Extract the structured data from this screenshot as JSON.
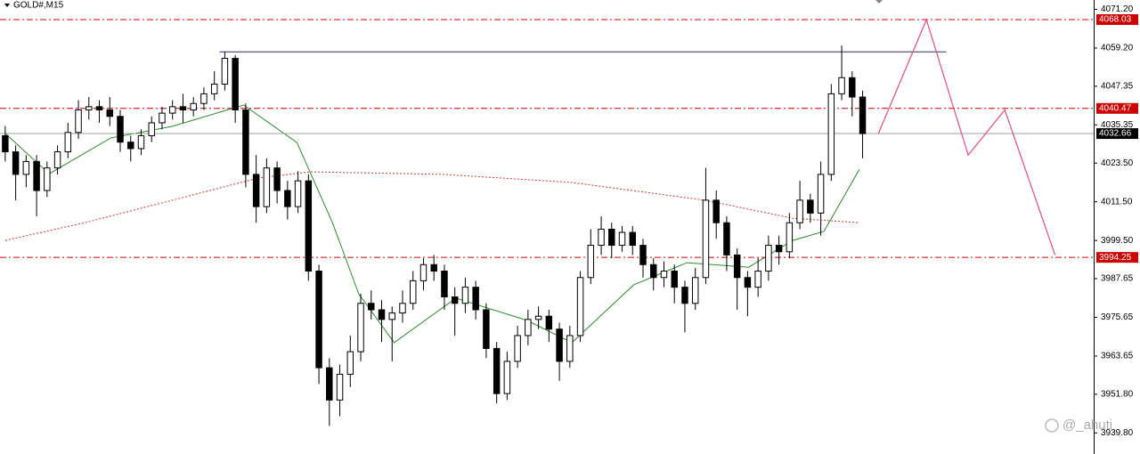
{
  "chart_data": {
    "type": "candlestick",
    "title": "GOLD#,M15",
    "open": [
      4032,
      4027,
      4020,
      4024,
      4015,
      4022,
      4027,
      4033,
      4040,
      4041,
      4040,
      4038,
      4030,
      4028,
      4032,
      4036,
      4039,
      4041,
      4040,
      4042,
      4045,
      4048,
      4056,
      4040,
      4020,
      4010,
      4022,
      4015,
      4010,
      4018,
      3990,
      3960,
      3950,
      3958,
      3965,
      3980,
      3978,
      3975,
      3977,
      3980,
      3987,
      3992,
      3990,
      3982,
      3980,
      3985,
      3978,
      3966,
      3952,
      3962,
      3970,
      3975,
      3976,
      3972,
      3962,
      3970,
      3988,
      3998,
      4003,
      3998,
      4002,
      3998,
      3992,
      3988,
      3990,
      3985,
      3980,
      3988,
      4012,
      4005,
      3995,
      3988,
      3985,
      3990,
      3998,
      3996,
      4005,
      4012,
      4008,
      4020,
      4045,
      4050,
      4044
    ],
    "high": [
      4035,
      4029,
      4026,
      4026,
      4024,
      4029,
      4036,
      4043,
      4044,
      4043,
      4044,
      4040,
      4032,
      4034,
      4038,
      4041,
      4043,
      4045,
      4044,
      4047,
      4052,
      4058,
      4057,
      4042,
      4026,
      4025,
      4024,
      4018,
      4021,
      4020,
      3992,
      3963,
      3961,
      3970,
      3983,
      3984,
      3981,
      3979,
      3984,
      3990,
      3994,
      3995,
      3992,
      3985,
      3988,
      3987,
      3980,
      3968,
      3965,
      3973,
      3978,
      3979,
      3978,
      3974,
      3973,
      3990,
      4003,
      4007,
      4005,
      4004,
      4004,
      4000,
      3994,
      3993,
      3992,
      3987,
      3991,
      4022,
      4015,
      4007,
      3997,
      3990,
      3994,
      4001,
      4001,
      4008,
      4018,
      4014,
      4024,
      4048,
      4060,
      4052,
      4046
    ],
    "low": [
      4024,
      4012,
      4016,
      4007,
      4013,
      4020,
      4025,
      4031,
      4037,
      4036,
      4035,
      4027,
      4024,
      4026,
      4030,
      4034,
      4037,
      4036,
      4038,
      4040,
      4043,
      4046,
      4036,
      4016,
      4005,
      4008,
      4011,
      4006,
      4008,
      3987,
      3955,
      3942,
      3945,
      3954,
      3962,
      3975,
      3968,
      3962,
      3974,
      3978,
      3984,
      3987,
      3978,
      3970,
      3977,
      3975,
      3963,
      3949,
      3950,
      3960,
      3967,
      3972,
      3968,
      3956,
      3960,
      3968,
      3986,
      3995,
      3994,
      3996,
      3995,
      3988,
      3984,
      3985,
      3980,
      3971,
      3978,
      3986,
      4000,
      3990,
      3978,
      3976,
      3982,
      3987,
      3992,
      3994,
      4003,
      4005,
      4001,
      4018,
      4043,
      4038,
      4025
    ],
    "close": [
      4027,
      4020,
      4024,
      4015,
      4022,
      4027,
      4033,
      4040,
      4041,
      4040,
      4038,
      4030,
      4028,
      4032,
      4036,
      4039,
      4041,
      4040,
      4042,
      4045,
      4048,
      4056,
      4040,
      4020,
      4010,
      4022,
      4015,
      4010,
      4018,
      3990,
      3960,
      3950,
      3958,
      3965,
      3980,
      3978,
      3975,
      3977,
      3980,
      3987,
      3992,
      3990,
      3982,
      3980,
      3985,
      3978,
      3966,
      3952,
      3962,
      3970,
      3975,
      3976,
      3972,
      3962,
      3970,
      3988,
      3998,
      4003,
      3998,
      4002,
      3998,
      3992,
      3988,
      3990,
      3985,
      3980,
      3988,
      4012,
      4005,
      3995,
      3988,
      3985,
      3990,
      3998,
      3996,
      4005,
      4012,
      4008,
      4020,
      4045,
      4050,
      4044,
      4032.66
    ],
    "up_color": "#ffffff",
    "down_color": "#000000",
    "xlim": [
      -0.5,
      104.1
    ],
    "ylim": [
      3937.4,
      4074.1
    ],
    "yticks": [
      {
        "value": 4071.2,
        "label": "4071.20"
      },
      {
        "value": 4059.2,
        "label": "4059.20"
      },
      {
        "value": 4047.35,
        "label": "4047.35"
      },
      {
        "value": 4035.35,
        "label": "4035.35"
      },
      {
        "value": 4023.5,
        "label": "4023.50"
      },
      {
        "value": 4011.5,
        "label": "4011.50"
      },
      {
        "value": 3999.5,
        "label": "3999.50"
      },
      {
        "value": 3987.65,
        "label": "3987.65"
      },
      {
        "value": 3975.65,
        "label": "3975.65"
      },
      {
        "value": 3963.65,
        "label": "3963.65"
      },
      {
        "value": 3951.8,
        "label": "3951.80"
      },
      {
        "value": 3939.8,
        "label": "3939.80"
      }
    ],
    "levels": [
      {
        "value": 4068.03,
        "color": "#cc0000",
        "style": "dashdot"
      },
      {
        "value": 4040.47,
        "color": "#cc0000",
        "style": "dashdot"
      },
      {
        "value": 4032.66,
        "color": "#000000",
        "style": "current"
      },
      {
        "value": 3994.25,
        "color": "#cc0000",
        "style": "dashdot"
      }
    ],
    "resistance": {
      "color": "#2a2a6a",
      "x": [
        20.5,
        90
      ],
      "values": [
        4058,
        4058
      ]
    },
    "ma": [
      {
        "color": "#2e8b2e",
        "style": "solid",
        "x": [
          0,
          4.2,
          10.1,
          16,
          22.8,
          27.9,
          31.3,
          33.8,
          37.2,
          43.1,
          49.9,
          54.2,
          60.1,
          65.2,
          71.1,
          75.3,
          78.3,
          81.7
        ],
        "values": [
          4032.7,
          4020.2,
          4031.3,
          4034.9,
          4041.5,
          4029.9,
          4005,
          3983,
          3967.8,
          3981.6,
          3974.7,
          3967.8,
          3985.7,
          3992.6,
          3991.2,
          3999.5,
          4002.3,
          4021.6
        ]
      },
      {
        "color": "#cc3333",
        "style": "dotted",
        "x": [
          0,
          7.6,
          16,
          24.2,
          29.2,
          41.9,
          54.2,
          66.9,
          75.3,
          81.7
        ],
        "values": [
          3999.5,
          4005,
          4012,
          4018.9,
          4020.8,
          4020,
          4017.5,
          4012,
          4006.4,
          4005
        ]
      }
    ],
    "projection": {
      "color": "#e0507a",
      "x": [
        83.5,
        88.1,
        92.1,
        95.6,
        100.4
      ],
      "values": [
        4032.66,
        4068,
        4026,
        4040,
        3995
      ]
    },
    "watermark": "@_ahuti"
  }
}
